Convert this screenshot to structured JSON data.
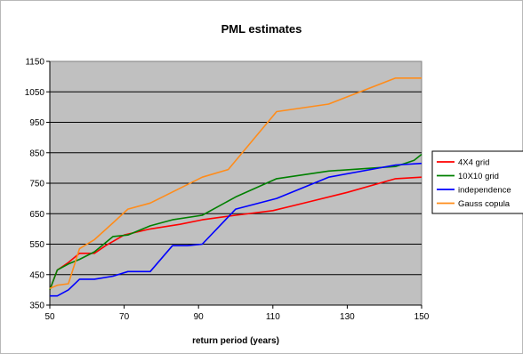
{
  "chart_data": {
    "type": "line",
    "title": "PML estimates",
    "xlabel": "return period (years)",
    "ylabel": "",
    "xlim": [
      50,
      150
    ],
    "ylim": [
      350,
      1150
    ],
    "xticks": [
      50,
      70,
      90,
      110,
      130,
      150
    ],
    "yticks": [
      350,
      450,
      550,
      650,
      750,
      850,
      950,
      1050,
      1150
    ],
    "grid": "horizontal",
    "plot_background": "#c0c0c0",
    "legend_position": "right",
    "series": [
      {
        "name": "4X4 grid",
        "color": "#ff0000",
        "points": [
          [
            50,
            400
          ],
          [
            52,
            465
          ],
          [
            55,
            490
          ],
          [
            58,
            520
          ],
          [
            62,
            520
          ],
          [
            65,
            545
          ],
          [
            70,
            580
          ],
          [
            77,
            600
          ],
          [
            85,
            615
          ],
          [
            91,
            630
          ],
          [
            100,
            645
          ],
          [
            110,
            660
          ],
          [
            120,
            690
          ],
          [
            130,
            720
          ],
          [
            143,
            765
          ],
          [
            150,
            770
          ]
        ]
      },
      {
        "name": "10X10 grid",
        "color": "#008000",
        "points": [
          [
            50,
            400
          ],
          [
            52,
            465
          ],
          [
            55,
            485
          ],
          [
            58,
            500
          ],
          [
            62,
            525
          ],
          [
            67,
            575
          ],
          [
            71,
            580
          ],
          [
            77,
            610
          ],
          [
            83,
            630
          ],
          [
            91,
            645
          ],
          [
            100,
            705
          ],
          [
            111,
            765
          ],
          [
            125,
            790
          ],
          [
            143,
            805
          ],
          [
            148,
            825
          ],
          [
            150,
            845
          ]
        ]
      },
      {
        "name": "independence",
        "color": "#0000ff",
        "points": [
          [
            50,
            380
          ],
          [
            52,
            380
          ],
          [
            55,
            400
          ],
          [
            58,
            435
          ],
          [
            62,
            435
          ],
          [
            67,
            445
          ],
          [
            71,
            460
          ],
          [
            77,
            460
          ],
          [
            83,
            545
          ],
          [
            87,
            545
          ],
          [
            91,
            550
          ],
          [
            100,
            665
          ],
          [
            111,
            700
          ],
          [
            125,
            770
          ],
          [
            143,
            810
          ],
          [
            150,
            815
          ]
        ]
      },
      {
        "name": "Gauss copula",
        "color": "#ff8c1a",
        "points": [
          [
            50,
            405
          ],
          [
            52,
            415
          ],
          [
            55,
            420
          ],
          [
            58,
            535
          ],
          [
            62,
            565
          ],
          [
            67,
            620
          ],
          [
            71,
            665
          ],
          [
            77,
            685
          ],
          [
            91,
            770
          ],
          [
            98,
            795
          ],
          [
            111,
            985
          ],
          [
            125,
            1010
          ],
          [
            143,
            1095
          ],
          [
            150,
            1095
          ]
        ]
      }
    ]
  }
}
